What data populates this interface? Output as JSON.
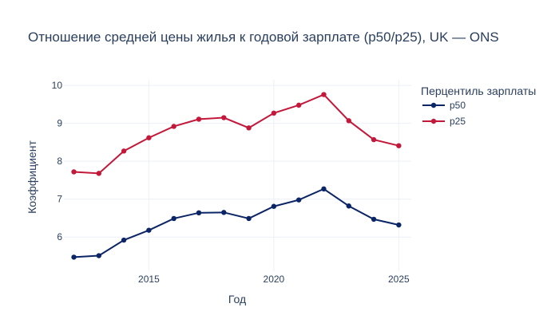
{
  "chart_data": {
    "type": "line",
    "title": "Отношение средней цены жилья к годовой зарплате (p50/p25), UK — ONS",
    "xlabel": "Год",
    "ylabel": "Коэффициент",
    "x": [
      2012,
      2013,
      2014,
      2015,
      2016,
      2017,
      2018,
      2019,
      2020,
      2021,
      2022,
      2023,
      2024,
      2025
    ],
    "xlim": [
      2011.6,
      2025.5
    ],
    "ylim": [
      5.1,
      10.15
    ],
    "xticks": [
      2015,
      2020,
      2025
    ],
    "yticks": [
      6,
      7,
      8,
      9,
      10
    ],
    "grid": true,
    "legend": {
      "title": "Перцентиль зарплаты",
      "position": "right"
    },
    "series": [
      {
        "name": "p50",
        "color": "#0b2566",
        "values": [
          5.47,
          5.51,
          5.92,
          6.18,
          6.49,
          6.64,
          6.65,
          6.49,
          6.81,
          6.98,
          7.27,
          6.82,
          6.47,
          6.32
        ]
      },
      {
        "name": "p25",
        "color": "#c4183a",
        "values": [
          7.72,
          7.68,
          8.27,
          8.62,
          8.92,
          9.11,
          9.15,
          8.88,
          9.27,
          9.48,
          9.76,
          9.07,
          8.57,
          8.41
        ]
      }
    ]
  }
}
